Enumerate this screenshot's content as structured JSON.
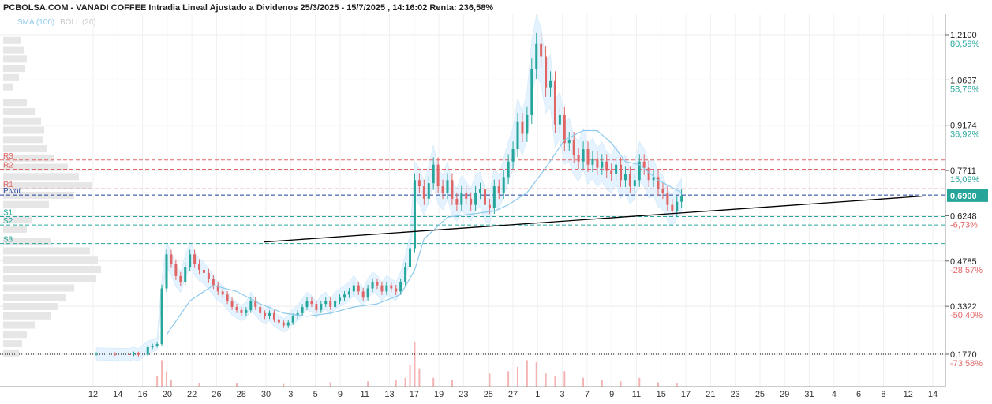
{
  "header": {
    "title": "PCBOLSA.COM - VANADI COFFEE Intradia Lineal Ajustado a Dividenos 25/3/2025 - 15/7/2025 , 14:16:02 Renta: 236,58%",
    "indicators": [
      {
        "label": "SMA (100)",
        "color": "#8ec9ec"
      },
      {
        "label": "BOLL (20)",
        "color": "#c8c8c8"
      }
    ]
  },
  "chart_data": {
    "type": "candlestick",
    "scale": "linear",
    "grid": true,
    "colors": {
      "up": "#26a69a",
      "down": "#e06666",
      "sma": "#8ec9ec",
      "boll_fill": "#dcefff",
      "volume": "#f4b3b3",
      "trendline": "#000000",
      "resistance": "#e06666",
      "support": "#26a69a",
      "pivot": "#1f3f99",
      "last_price_bg": "#26a69a"
    },
    "y_ticks": [
      {
        "price": "1,2100",
        "pct": "80,59%",
        "value": 1.21
      },
      {
        "price": "1,0637",
        "pct": "58,76%",
        "value": 1.0637
      },
      {
        "price": "0,9174",
        "pct": "36,92%",
        "value": 0.9174
      },
      {
        "price": "0,7711",
        "pct": "15,09%",
        "value": 0.7711
      },
      {
        "price": "0,6248",
        "pct": "-6,73%",
        "value": 0.6248
      },
      {
        "price": "0,4785",
        "pct": "-28,57%",
        "value": 0.4785
      },
      {
        "price": "0,3322",
        "pct": "-50,40%",
        "value": 0.3322
      },
      {
        "price": "0,1770",
        "pct": "-73,58%",
        "value": 0.177
      }
    ],
    "last_price": {
      "label": "0,6900",
      "value": 0.69
    },
    "levels": [
      {
        "name": "R3",
        "value": 0.805,
        "kind": "resistance"
      },
      {
        "name": "R2",
        "value": 0.775,
        "kind": "resistance"
      },
      {
        "name": "R1",
        "value": 0.712,
        "kind": "resistance"
      },
      {
        "name": "Pivot",
        "value": 0.692,
        "kind": "pivot"
      },
      {
        "name": "S1",
        "value": 0.622,
        "kind": "support"
      },
      {
        "name": "S2",
        "value": 0.595,
        "kind": "support"
      },
      {
        "name": "S3",
        "value": 0.535,
        "kind": "support"
      }
    ],
    "x_labels": [
      "12",
      "14",
      "16",
      "20",
      "22",
      "26",
      "28",
      "30",
      "3",
      "5",
      "9",
      "11",
      "13",
      "17",
      "19",
      "23",
      "25",
      "27",
      "1",
      "3",
      "7",
      "9",
      "11",
      "15",
      "17",
      "21",
      "23",
      "25",
      "29",
      "31",
      "4",
      "6",
      "8",
      "12",
      "14"
    ],
    "price_series": [
      [
        0,
        0.178
      ],
      [
        4,
        0.177
      ],
      [
        7,
        0.176
      ],
      [
        8,
        0.18
      ],
      [
        9,
        0.175
      ],
      [
        11,
        0.2
      ],
      [
        12,
        0.205
      ],
      [
        13,
        0.21
      ],
      [
        14,
        0.39
      ],
      [
        15,
        0.5
      ],
      [
        16,
        0.47
      ],
      [
        17,
        0.43
      ],
      [
        18,
        0.41
      ],
      [
        19,
        0.46
      ],
      [
        20,
        0.5
      ],
      [
        21,
        0.47
      ],
      [
        22,
        0.45
      ],
      [
        23,
        0.44
      ],
      [
        24,
        0.42
      ],
      [
        25,
        0.4
      ],
      [
        26,
        0.38
      ],
      [
        27,
        0.37
      ],
      [
        28,
        0.35
      ],
      [
        29,
        0.33
      ],
      [
        30,
        0.32
      ],
      [
        31,
        0.31
      ],
      [
        32,
        0.32
      ],
      [
        33,
        0.35
      ],
      [
        34,
        0.33
      ],
      [
        35,
        0.31
      ],
      [
        36,
        0.3
      ],
      [
        37,
        0.31
      ],
      [
        38,
        0.29
      ],
      [
        39,
        0.28
      ],
      [
        40,
        0.27
      ],
      [
        41,
        0.28
      ],
      [
        42,
        0.3
      ],
      [
        43,
        0.31
      ],
      [
        44,
        0.33
      ],
      [
        45,
        0.35
      ],
      [
        46,
        0.34
      ],
      [
        47,
        0.32
      ],
      [
        48,
        0.34
      ],
      [
        49,
        0.35
      ],
      [
        50,
        0.33
      ],
      [
        51,
        0.35
      ],
      [
        52,
        0.36
      ],
      [
        53,
        0.37
      ],
      [
        54,
        0.38
      ],
      [
        55,
        0.4
      ],
      [
        56,
        0.38
      ],
      [
        57,
        0.36
      ],
      [
        58,
        0.39
      ],
      [
        59,
        0.41
      ],
      [
        60,
        0.4
      ],
      [
        61,
        0.38
      ],
      [
        62,
        0.4
      ],
      [
        63,
        0.39
      ],
      [
        64,
        0.38
      ],
      [
        65,
        0.41
      ],
      [
        66,
        0.46
      ],
      [
        67,
        0.52
      ],
      [
        68,
        0.74
      ],
      [
        69,
        0.72
      ],
      [
        70,
        0.68
      ],
      [
        71,
        0.73
      ],
      [
        72,
        0.79
      ],
      [
        73,
        0.72
      ],
      [
        74,
        0.7
      ],
      [
        75,
        0.74
      ],
      [
        76,
        0.68
      ],
      [
        77,
        0.66
      ],
      [
        78,
        0.7
      ],
      [
        79,
        0.68
      ],
      [
        80,
        0.66
      ],
      [
        81,
        0.7
      ],
      [
        82,
        0.71
      ],
      [
        83,
        0.66
      ],
      [
        84,
        0.65
      ],
      [
        85,
        0.72
      ],
      [
        86,
        0.7
      ],
      [
        87,
        0.75
      ],
      [
        88,
        0.8
      ],
      [
        89,
        0.84
      ],
      [
        90,
        0.93
      ],
      [
        91,
        0.89
      ],
      [
        92,
        0.95
      ],
      [
        93,
        1.1
      ],
      [
        94,
        1.18
      ],
      [
        95,
        1.14
      ],
      [
        96,
        1.04
      ],
      [
        97,
        1.06
      ],
      [
        98,
        0.92
      ],
      [
        99,
        0.95
      ],
      [
        100,
        0.86
      ],
      [
        101,
        0.87
      ],
      [
        102,
        0.82
      ],
      [
        103,
        0.8
      ],
      [
        104,
        0.84
      ],
      [
        105,
        0.79
      ],
      [
        106,
        0.81
      ],
      [
        107,
        0.78
      ],
      [
        108,
        0.8
      ],
      [
        109,
        0.77
      ],
      [
        110,
        0.76
      ],
      [
        111,
        0.79
      ],
      [
        112,
        0.74
      ],
      [
        113,
        0.76
      ],
      [
        114,
        0.72
      ],
      [
        115,
        0.74
      ],
      [
        116,
        0.8
      ],
      [
        117,
        0.78
      ],
      [
        118,
        0.74
      ],
      [
        119,
        0.75
      ],
      [
        120,
        0.71
      ],
      [
        121,
        0.7
      ],
      [
        122,
        0.66
      ],
      [
        123,
        0.64
      ],
      [
        124,
        0.67
      ],
      [
        125,
        0.69
      ]
    ],
    "sma_series": [
      [
        15,
        0.24
      ],
      [
        20,
        0.35
      ],
      [
        25,
        0.4
      ],
      [
        30,
        0.38
      ],
      [
        35,
        0.34
      ],
      [
        40,
        0.31
      ],
      [
        45,
        0.3
      ],
      [
        50,
        0.31
      ],
      [
        55,
        0.33
      ],
      [
        60,
        0.34
      ],
      [
        65,
        0.37
      ],
      [
        68,
        0.45
      ],
      [
        70,
        0.55
      ],
      [
        75,
        0.62
      ],
      [
        80,
        0.63
      ],
      [
        85,
        0.64
      ],
      [
        88,
        0.66
      ],
      [
        92,
        0.7
      ],
      [
        96,
        0.78
      ],
      [
        100,
        0.87
      ],
      [
        104,
        0.9
      ],
      [
        107,
        0.9
      ],
      [
        110,
        0.86
      ],
      [
        113,
        0.8
      ],
      [
        116,
        0.79
      ],
      [
        120,
        0.74
      ],
      [
        125,
        0.7
      ]
    ],
    "trendline": {
      "from": [
        16.2,
        0.54
      ],
      "to": [
        178,
        0.688
      ]
    },
    "volume_profile_bars": [
      {
        "level": 1.19,
        "len": 22
      },
      {
        "level": 1.16,
        "len": 26
      },
      {
        "level": 1.13,
        "len": 30
      },
      {
        "level": 1.1,
        "len": 28
      },
      {
        "level": 1.07,
        "len": 20
      },
      {
        "level": 1.04,
        "len": 12
      },
      {
        "level": 0.99,
        "len": 30
      },
      {
        "level": 0.96,
        "len": 40
      },
      {
        "level": 0.93,
        "len": 48
      },
      {
        "level": 0.9,
        "len": 52
      },
      {
        "level": 0.87,
        "len": 50
      },
      {
        "level": 0.84,
        "len": 56
      },
      {
        "level": 0.81,
        "len": 64
      },
      {
        "level": 0.78,
        "len": 82
      },
      {
        "level": 0.75,
        "len": 96
      },
      {
        "level": 0.72,
        "len": 112
      },
      {
        "level": 0.69,
        "len": 90
      },
      {
        "level": 0.66,
        "len": 58
      },
      {
        "level": 0.61,
        "len": 36
      },
      {
        "level": 0.58,
        "len": 30
      },
      {
        "level": 0.54,
        "len": 60
      },
      {
        "level": 0.51,
        "len": 110
      },
      {
        "level": 0.48,
        "len": 120
      },
      {
        "level": 0.45,
        "len": 124
      },
      {
        "level": 0.42,
        "len": 118
      },
      {
        "level": 0.39,
        "len": 90
      },
      {
        "level": 0.36,
        "len": 80
      },
      {
        "level": 0.33,
        "len": 70
      },
      {
        "level": 0.3,
        "len": 60
      },
      {
        "level": 0.27,
        "len": 40
      },
      {
        "level": 0.24,
        "len": 30
      },
      {
        "level": 0.21,
        "len": 24
      },
      {
        "level": 0.18,
        "len": 20
      }
    ],
    "volume_bars": [
      {
        "idx": 13,
        "vol": 0.25
      },
      {
        "idx": 14,
        "vol": 0.6
      },
      {
        "idx": 15,
        "vol": 0.35
      },
      {
        "idx": 16,
        "vol": 0.15
      },
      {
        "idx": 22,
        "vol": 0.08
      },
      {
        "idx": 30,
        "vol": 0.07
      },
      {
        "idx": 40,
        "vol": 0.06
      },
      {
        "idx": 50,
        "vol": 0.1
      },
      {
        "idx": 58,
        "vol": 0.12
      },
      {
        "idx": 64,
        "vol": 0.15
      },
      {
        "idx": 66,
        "vol": 0.2
      },
      {
        "idx": 67,
        "vol": 0.5
      },
      {
        "idx": 68,
        "vol": 1.0
      },
      {
        "idx": 69,
        "vol": 0.4
      },
      {
        "idx": 72,
        "vol": 0.2
      },
      {
        "idx": 76,
        "vol": 0.15
      },
      {
        "idx": 84,
        "vol": 0.3
      },
      {
        "idx": 88,
        "vol": 0.35
      },
      {
        "idx": 90,
        "vol": 0.45
      },
      {
        "idx": 92,
        "vol": 0.6
      },
      {
        "idx": 94,
        "vol": 0.55
      },
      {
        "idx": 96,
        "vol": 0.3
      },
      {
        "idx": 98,
        "vol": 0.25
      },
      {
        "idx": 100,
        "vol": 0.35
      },
      {
        "idx": 104,
        "vol": 0.2
      },
      {
        "idx": 108,
        "vol": 0.15
      },
      {
        "idx": 112,
        "vol": 0.12
      },
      {
        "idx": 116,
        "vol": 0.2
      },
      {
        "idx": 120,
        "vol": 0.1
      },
      {
        "idx": 124,
        "vol": 0.08
      }
    ]
  }
}
